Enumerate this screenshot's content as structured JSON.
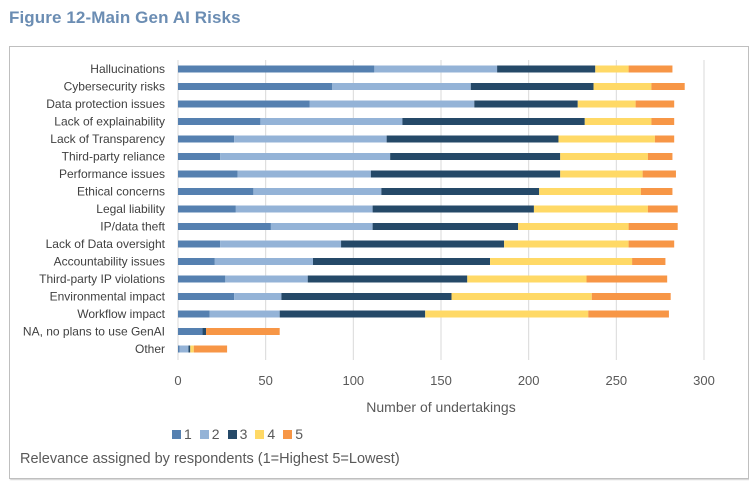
{
  "figure_title": "Figure 12-Main Gen AI Risks",
  "note": "Relevance assigned by respondents (1=Highest 5=Lowest)",
  "colors": {
    "1": "#5580b0",
    "2": "#94b3d7",
    "3": "#254968",
    "4": "#ffd966",
    "5": "#f79646",
    "grid": "#d9d9d9"
  },
  "chart_data": {
    "type": "bar",
    "orientation": "horizontal",
    "stacked": true,
    "title": "Figure 12-Main Gen AI Risks",
    "xlabel": "Number of undertakings",
    "ylabel": "",
    "xlim": [
      0,
      300
    ],
    "x_ticks": [
      "0",
      "50",
      "100",
      "150",
      "200",
      "250",
      "300"
    ],
    "grid": true,
    "legend_position": "bottom",
    "categories": [
      "Hallucinations",
      "Cybersecurity risks",
      "Data protection issues",
      "Lack of explainability",
      "Lack of Transparency",
      "Third-party reliance",
      "Performance issues",
      "Ethical concerns",
      "Legal liability",
      "IP/data theft",
      "Lack of Data oversight",
      "Accountability issues",
      "Third-party IP violations",
      "Environmental impact",
      "Workflow impact",
      "NA, no plans to use GenAI",
      "Other"
    ],
    "series": [
      {
        "name": "1",
        "values": [
          112,
          88,
          75,
          47,
          32,
          24,
          34,
          43,
          33,
          53,
          24,
          21,
          27,
          32,
          18,
          14,
          1
        ]
      },
      {
        "name": "2",
        "values": [
          70,
          79,
          94,
          81,
          87,
          97,
          76,
          73,
          78,
          58,
          69,
          56,
          47,
          27,
          40,
          0,
          5
        ]
      },
      {
        "name": "3",
        "values": [
          56,
          70,
          59,
          104,
          98,
          97,
          108,
          90,
          92,
          83,
          93,
          101,
          91,
          97,
          83,
          2,
          1
        ]
      },
      {
        "name": "4",
        "values": [
          19,
          33,
          33,
          38,
          55,
          50,
          47,
          58,
          65,
          63,
          71,
          81,
          68,
          80,
          93,
          0,
          2
        ]
      },
      {
        "name": "5",
        "values": [
          25,
          19,
          22,
          13,
          11,
          14,
          19,
          18,
          17,
          28,
          26,
          19,
          46,
          45,
          46,
          42,
          19
        ]
      }
    ]
  }
}
